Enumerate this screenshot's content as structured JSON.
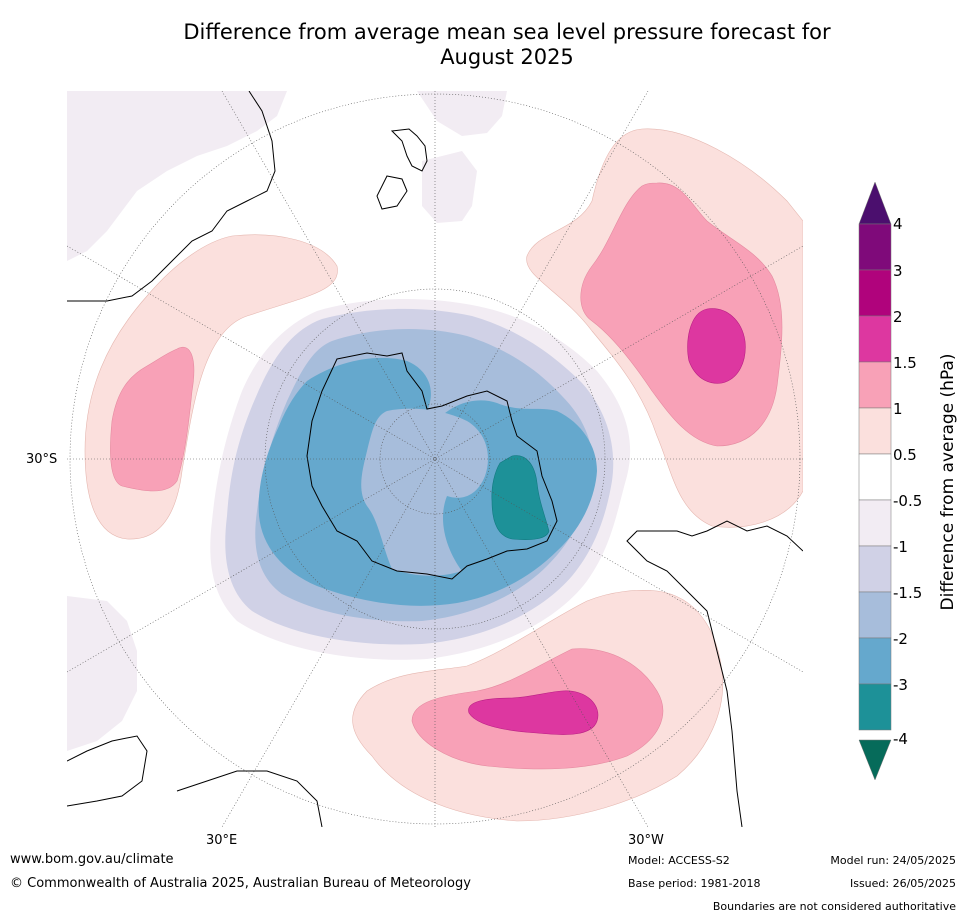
{
  "title_line1": "Difference from average mean sea level pressure forecast for",
  "title_line2": "August 2025",
  "map_labels": {
    "lat_30s": "30°S",
    "lon_30e": "30°E",
    "lon_30w": "30°W"
  },
  "colorbar": {
    "label": "Difference from average (hPa)",
    "ticks": [
      "4",
      "3",
      "2",
      "1.5",
      "1",
      "0.5",
      "-0.5",
      "-1",
      "-1.5",
      "-2",
      "-3",
      "-4"
    ],
    "colors": {
      "gt4": "#4b0f6e",
      "c3_4": "#7f0a7a",
      "c2_3": "#b0037c",
      "c15_2": "#dd37a0",
      "c1_15": "#f8a1b7",
      "c05_1": "#fbe0dd",
      "neutral": "#ffffff",
      "m05_1": "#f2ecf3",
      "m1_15": "#d0d1e6",
      "m15_2": "#a7bddb",
      "m2_3": "#65a8cd",
      "m3_4": "#1d9198",
      "lt4": "#066b5a"
    }
  },
  "footer": {
    "url": "www.bom.gov.au/climate",
    "copyright": "© Commonwealth of Australia 2025, Australian Bureau of Meteorology",
    "model": "Model: ACCESS-S2",
    "base_period": "Base period: 1981-2018",
    "model_run": "Model run: 24/05/2025",
    "issued": "Issued: 26/05/2025",
    "disclaimer": "Boundaries are not considered authoritative"
  }
}
